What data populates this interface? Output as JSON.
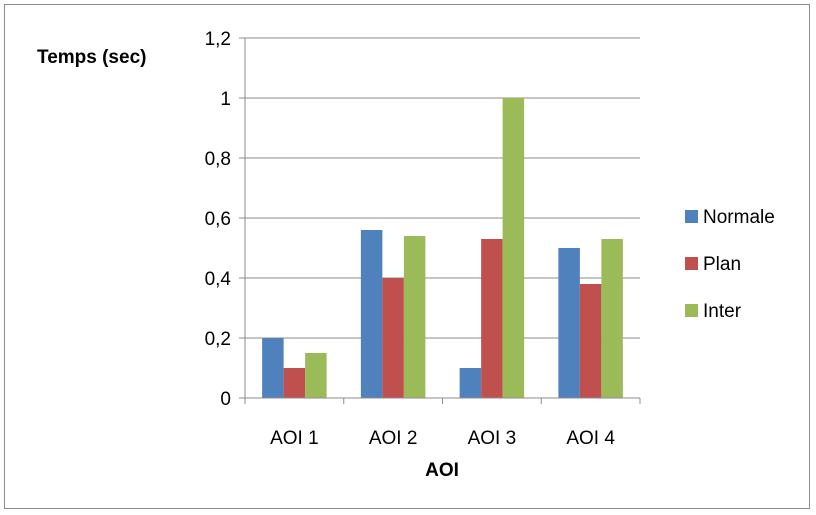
{
  "chart_data": {
    "type": "bar",
    "ylabel": "Temps (sec)",
    "xlabel": "AOI",
    "categories": [
      "AOI 1",
      "AOI 2",
      "AOI 3",
      "AOI 4"
    ],
    "ylim": [
      0,
      1.2
    ],
    "yticks": [
      0,
      0.2,
      0.4,
      0.6,
      0.8,
      1,
      1.2
    ],
    "ytick_labels": [
      "0",
      "0,2",
      "0,4",
      "0,6",
      "0,8",
      "1",
      "1,2"
    ],
    "grid": true,
    "legend_position": "right",
    "series": [
      {
        "name": "Normale",
        "color": "#4f81bd",
        "values": [
          0.2,
          0.56,
          0.1,
          0.5
        ]
      },
      {
        "name": "Plan",
        "color": "#c0504d",
        "values": [
          0.1,
          0.4,
          0.53,
          0.38
        ]
      },
      {
        "name": "Inter",
        "color": "#9bbb59",
        "values": [
          0.15,
          0.54,
          1.0,
          0.53
        ]
      }
    ]
  }
}
